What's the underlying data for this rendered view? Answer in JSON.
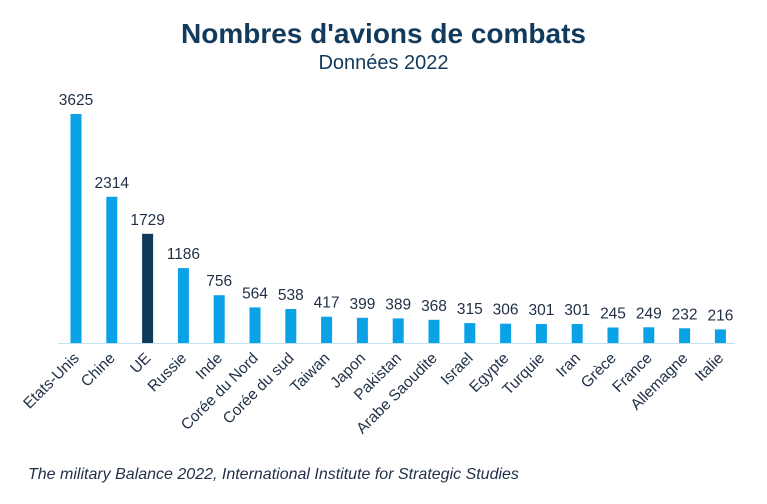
{
  "title": "Nombres d'avions de combats",
  "subtitle": "Données 2022",
  "source": "The military Balance 2022, International Institute for Strategic Studies",
  "colors": {
    "bar": "#0aa2e6",
    "highlight": "#103a5a",
    "axis": "#bfe2f2"
  },
  "chart_data": {
    "type": "bar",
    "title": "Nombres d'avions de combats",
    "subtitle": "Données 2022",
    "xlabel": "",
    "ylabel": "",
    "ylim": [
      0,
      3625
    ],
    "grid": false,
    "highlight_category": "UE",
    "categories": [
      "Etats-Unis",
      "Chine",
      "UE",
      "Russie",
      "Inde",
      "Corée du Nord",
      "Corée du sud",
      "Taiwan",
      "Japon",
      "Pakistan",
      "Arabe Saoudite",
      "Israel",
      "Egypte",
      "Turquie",
      "Iran",
      "Grèce",
      "France",
      "Allemagne",
      "Italie"
    ],
    "values": [
      3625,
      2314,
      1729,
      1186,
      756,
      564,
      538,
      417,
      399,
      389,
      368,
      315,
      306,
      301,
      301,
      245,
      249,
      232,
      216
    ]
  }
}
